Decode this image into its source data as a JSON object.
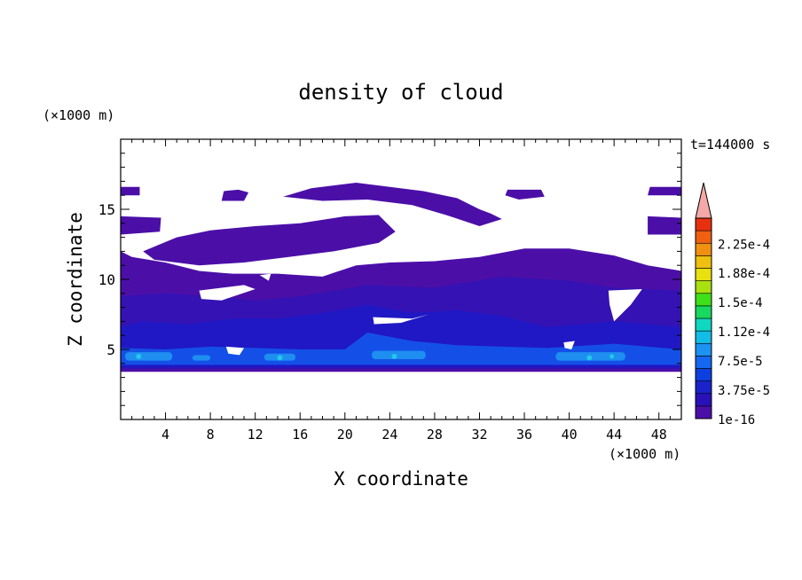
{
  "chart_data": {
    "type": "heatmap",
    "title": "density of cloud",
    "xlabel": "X coordinate",
    "ylabel": "Z coordinate",
    "x_unit": "(×1000 m)",
    "y_unit": "(×1000 m)",
    "time_label": "t=144000 s",
    "xlim": [
      0,
      50
    ],
    "ylim": [
      0,
      20
    ],
    "x_ticks": [
      "4",
      "8",
      "12",
      "16",
      "20",
      "24",
      "28",
      "32",
      "36",
      "40",
      "44",
      "48"
    ],
    "y_ticks": [
      "5",
      "10",
      "15"
    ],
    "colorbar": {
      "labels": [
        "1e-16",
        "3.75e-5",
        "7.5e-5",
        "1.12e-4",
        "1.5e-4",
        "1.88e-4",
        "2.25e-4"
      ],
      "colors": [
        "#4b0fa8",
        "#2a10b8",
        "#1b22cc",
        "#0d3fe0",
        "#1467f0",
        "#1c92f2",
        "#12bce6",
        "#10d8c0",
        "#18d860",
        "#3ee018",
        "#a8e010",
        "#e8e010",
        "#f0c010",
        "#f09010",
        "#f06010",
        "#e83010",
        "#f4a8a8"
      ]
    },
    "cloud_colors": {
      "base": "#4b0fa8",
      "mid": "#3512b4",
      "deep": "#2018c4",
      "blue": "#1450e8",
      "light": "#1e8ef0",
      "cyan": "#22c8e8"
    }
  }
}
